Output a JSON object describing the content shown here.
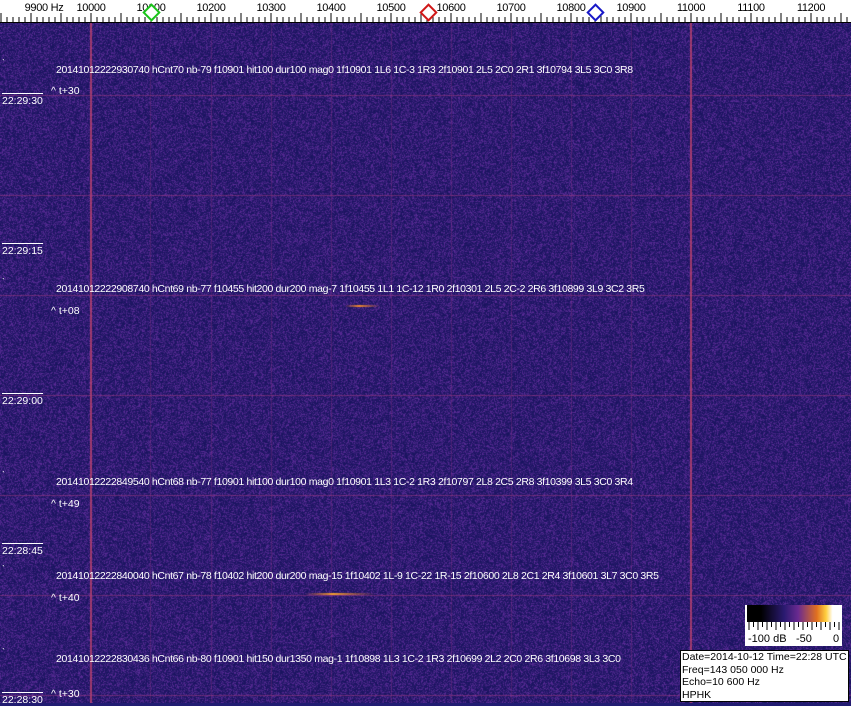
{
  "axis": {
    "unit_label": "9900 Hz",
    "ticks": [
      "10000",
      "10100",
      "10200",
      "10300",
      "10400",
      "10500",
      "10600",
      "10700",
      "10800",
      "10900",
      "11000",
      "11100",
      "11200"
    ],
    "range_hz": [
      9830,
      11270
    ]
  },
  "markers": [
    {
      "name": "green-marker",
      "freq_hz": 10100,
      "color": "#19c419"
    },
    {
      "name": "red-marker",
      "freq_hz": 10562,
      "color": "#d01818"
    },
    {
      "name": "blue-marker",
      "freq_hz": 10840,
      "color": "#1818c8"
    }
  ],
  "time_labels": [
    "22:29:30",
    "22:29:15",
    "22:29:00",
    "22:28:45",
    "22:28:30"
  ],
  "detections": [
    {
      "text": "20141012222930740 hCnt70 nb-79 f10901 hit100 dur100 mag0 1f10901 1L6 1C-3 1R3 2f10901 2L5 2C0 2R1 3f10794 3L5 3C0 3R8",
      "offset": "^ t+30"
    },
    {
      "text": "20141012222908740 hCnt69 nb-77 f10455 hit200 dur200 mag-7 1f10455 1L1 1C-12 1R0 2f10301 2L5 2C-2 2R6 3f10899 3L9 3C2 3R5",
      "offset": "^ t+08"
    },
    {
      "text": "20141012222849540 hCnt68 nb-77 f10901 hit100 dur100 mag0 1f10901 1L3 1C-2 1R3 2f10797 2L8 2C5 2R8 3f10399 3L5 3C0 3R4",
      "offset": "^ t+49"
    },
    {
      "text": "20141012222840040 hCnt67 nb-78 f10402 hit200 dur200 mag-15 1f10402 1L-9 1C-22 1R-15 2f10600 2L8 2C1 2R4 3f10601 3L7 3C0 3R5",
      "offset": "^ t+40"
    },
    {
      "text": "20141012222830436 hCnt66 nb-80 f10901 hit150 dur1350 mag-1 1f10898 1L3 1C-2 1R3 2f10699 2L2 2C0 2R6 3f10698 3L3 3C0",
      "offset": "^ t+30"
    }
  ],
  "colorscale": {
    "labels": [
      "-100 dB",
      "-50",
      "0"
    ]
  },
  "info": {
    "line1": "Date=2014-10-12 Time=22:28 UTC",
    "line2": "Freq=143 050 000 Hz",
    "line3": "Echo=10 600 Hz",
    "line4": "HPHK"
  },
  "colors": {
    "background": "#211c72",
    "carrier": "#c0405a",
    "echo": "#f0a030"
  }
}
